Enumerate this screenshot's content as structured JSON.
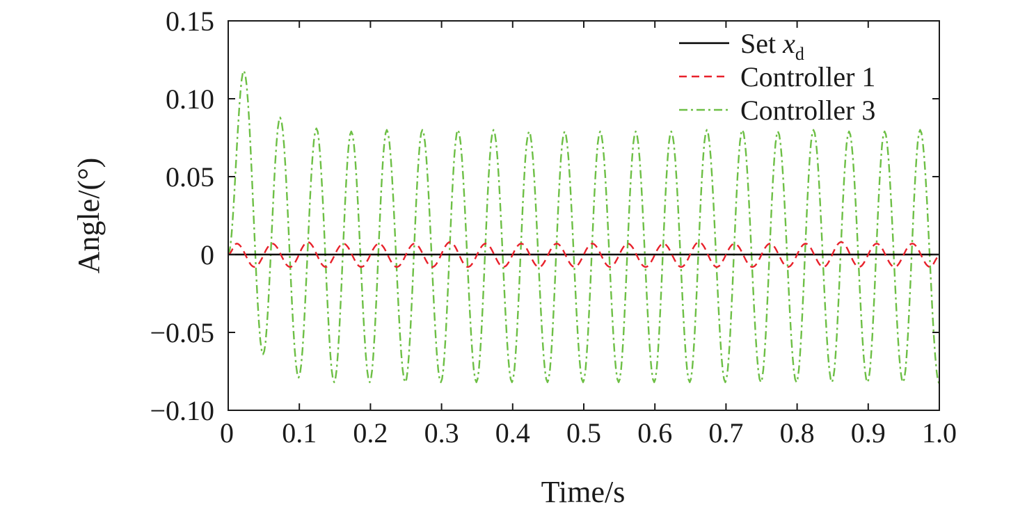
{
  "chart_data": {
    "type": "line",
    "xlabel": "Time/s",
    "ylabel": "Angle/(°)",
    "xlim": [
      0,
      1.0
    ],
    "ylim": [
      -0.1,
      0.15
    ],
    "x_ticks": [
      "0",
      "0.1",
      "0.2",
      "0.3",
      "0.4",
      "0.5",
      "0.6",
      "0.7",
      "0.8",
      "0.9",
      "1.0"
    ],
    "y_ticks": [
      "−0.10",
      "−0.05",
      "0",
      "0.05",
      "0.10",
      "0.15"
    ],
    "grid": false,
    "legend_position": "top-right",
    "legend": {
      "set_prefix": "Set ",
      "set_var": "x",
      "set_sub": "d",
      "c1": "Controller 1",
      "c3": "Controller 3"
    },
    "series": [
      {
        "key": "set",
        "color": "#000000",
        "style": "solid",
        "x": [
          0,
          1.0
        ],
        "y": [
          0,
          0
        ]
      },
      {
        "key": "c1",
        "color": "#e8212b",
        "style": "dashed",
        "x": [
          0,
          0.012,
          0.037,
          0.062,
          0.087,
          0.112,
          0.137,
          0.162,
          0.187,
          0.212,
          0.237,
          0.262,
          0.287,
          0.312,
          0.337,
          0.362,
          0.387,
          0.412,
          0.437,
          0.462,
          0.487,
          0.512,
          0.537,
          0.562,
          0.587,
          0.612,
          0.637,
          0.662,
          0.687,
          0.712,
          0.737,
          0.762,
          0.787,
          0.812,
          0.837,
          0.862,
          0.887,
          0.912,
          0.937,
          0.962,
          0.987,
          1.0
        ],
        "y": [
          0,
          0.007,
          -0.008,
          0.007,
          -0.008,
          0.008,
          -0.008,
          0.007,
          -0.008,
          0.007,
          -0.008,
          0.007,
          -0.008,
          0.008,
          -0.008,
          0.007,
          -0.008,
          0.007,
          -0.008,
          0.007,
          -0.008,
          0.007,
          -0.008,
          0.007,
          -0.008,
          0.007,
          -0.008,
          0.008,
          -0.008,
          0.007,
          -0.008,
          0.007,
          -0.008,
          0.007,
          -0.008,
          0.008,
          -0.008,
          0.007,
          -0.008,
          0.007,
          -0.008,
          -0.001
        ]
      },
      {
        "key": "c3",
        "color": "#6dbf45",
        "style": "dashdot",
        "x": [
          0,
          0.022,
          0.049,
          0.073,
          0.099,
          0.124,
          0.149,
          0.173,
          0.199,
          0.223,
          0.249,
          0.273,
          0.299,
          0.323,
          0.349,
          0.373,
          0.399,
          0.423,
          0.449,
          0.473,
          0.499,
          0.523,
          0.549,
          0.573,
          0.599,
          0.623,
          0.649,
          0.673,
          0.699,
          0.723,
          0.749,
          0.773,
          0.799,
          0.823,
          0.849,
          0.873,
          0.899,
          0.923,
          0.949,
          0.973,
          1.0
        ],
        "y": [
          0,
          0.118,
          -0.064,
          0.088,
          -0.079,
          0.081,
          -0.082,
          0.079,
          -0.082,
          0.08,
          -0.082,
          0.08,
          -0.082,
          0.08,
          -0.082,
          0.08,
          -0.082,
          0.079,
          -0.082,
          0.079,
          -0.082,
          0.079,
          -0.082,
          0.079,
          -0.082,
          0.079,
          -0.082,
          0.08,
          -0.082,
          0.08,
          -0.082,
          0.079,
          -0.082,
          0.08,
          -0.082,
          0.079,
          -0.082,
          0.079,
          -0.082,
          0.08,
          -0.083
        ]
      }
    ]
  }
}
